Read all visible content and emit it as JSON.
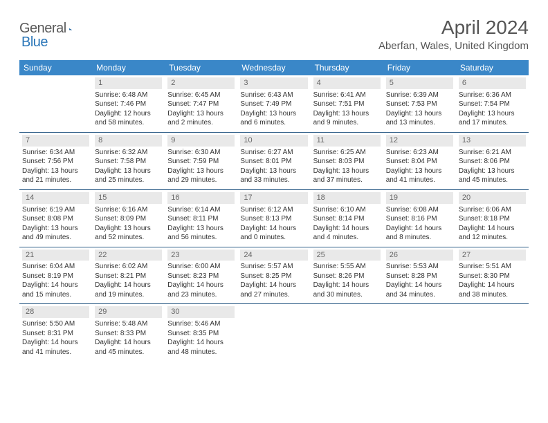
{
  "logo": {
    "left": "General",
    "right": "Blue"
  },
  "title": "April 2024",
  "location": "Aberfan, Wales, United Kingdom",
  "weekday_headers": [
    "Sunday",
    "Monday",
    "Tuesday",
    "Wednesday",
    "Thursday",
    "Friday",
    "Saturday"
  ],
  "header_bg": "#3a87c8",
  "header_fg": "#ffffff",
  "row_border": "#2a5a85",
  "daynum_bg": "#e9e9e9",
  "logo_triangle_fill": "#2a76b8",
  "weeks": [
    [
      {
        "n": "",
        "sunrise": "",
        "sunset": "",
        "dayh": "",
        "daym": ""
      },
      {
        "n": "1",
        "sunrise": "6:48 AM",
        "sunset": "7:46 PM",
        "dayh": "12",
        "daym": "58"
      },
      {
        "n": "2",
        "sunrise": "6:45 AM",
        "sunset": "7:47 PM",
        "dayh": "13",
        "daym": "2"
      },
      {
        "n": "3",
        "sunrise": "6:43 AM",
        "sunset": "7:49 PM",
        "dayh": "13",
        "daym": "6"
      },
      {
        "n": "4",
        "sunrise": "6:41 AM",
        "sunset": "7:51 PM",
        "dayh": "13",
        "daym": "9"
      },
      {
        "n": "5",
        "sunrise": "6:39 AM",
        "sunset": "7:53 PM",
        "dayh": "13",
        "daym": "13"
      },
      {
        "n": "6",
        "sunrise": "6:36 AM",
        "sunset": "7:54 PM",
        "dayh": "13",
        "daym": "17"
      }
    ],
    [
      {
        "n": "7",
        "sunrise": "6:34 AM",
        "sunset": "7:56 PM",
        "dayh": "13",
        "daym": "21"
      },
      {
        "n": "8",
        "sunrise": "6:32 AM",
        "sunset": "7:58 PM",
        "dayh": "13",
        "daym": "25"
      },
      {
        "n": "9",
        "sunrise": "6:30 AM",
        "sunset": "7:59 PM",
        "dayh": "13",
        "daym": "29"
      },
      {
        "n": "10",
        "sunrise": "6:27 AM",
        "sunset": "8:01 PM",
        "dayh": "13",
        "daym": "33"
      },
      {
        "n": "11",
        "sunrise": "6:25 AM",
        "sunset": "8:03 PM",
        "dayh": "13",
        "daym": "37"
      },
      {
        "n": "12",
        "sunrise": "6:23 AM",
        "sunset": "8:04 PM",
        "dayh": "13",
        "daym": "41"
      },
      {
        "n": "13",
        "sunrise": "6:21 AM",
        "sunset": "8:06 PM",
        "dayh": "13",
        "daym": "45"
      }
    ],
    [
      {
        "n": "14",
        "sunrise": "6:19 AM",
        "sunset": "8:08 PM",
        "dayh": "13",
        "daym": "49"
      },
      {
        "n": "15",
        "sunrise": "6:16 AM",
        "sunset": "8:09 PM",
        "dayh": "13",
        "daym": "52"
      },
      {
        "n": "16",
        "sunrise": "6:14 AM",
        "sunset": "8:11 PM",
        "dayh": "13",
        "daym": "56"
      },
      {
        "n": "17",
        "sunrise": "6:12 AM",
        "sunset": "8:13 PM",
        "dayh": "14",
        "daym": "0"
      },
      {
        "n": "18",
        "sunrise": "6:10 AM",
        "sunset": "8:14 PM",
        "dayh": "14",
        "daym": "4"
      },
      {
        "n": "19",
        "sunrise": "6:08 AM",
        "sunset": "8:16 PM",
        "dayh": "14",
        "daym": "8"
      },
      {
        "n": "20",
        "sunrise": "6:06 AM",
        "sunset": "8:18 PM",
        "dayh": "14",
        "daym": "12"
      }
    ],
    [
      {
        "n": "21",
        "sunrise": "6:04 AM",
        "sunset": "8:19 PM",
        "dayh": "14",
        "daym": "15"
      },
      {
        "n": "22",
        "sunrise": "6:02 AM",
        "sunset": "8:21 PM",
        "dayh": "14",
        "daym": "19"
      },
      {
        "n": "23",
        "sunrise": "6:00 AM",
        "sunset": "8:23 PM",
        "dayh": "14",
        "daym": "23"
      },
      {
        "n": "24",
        "sunrise": "5:57 AM",
        "sunset": "8:25 PM",
        "dayh": "14",
        "daym": "27"
      },
      {
        "n": "25",
        "sunrise": "5:55 AM",
        "sunset": "8:26 PM",
        "dayh": "14",
        "daym": "30"
      },
      {
        "n": "26",
        "sunrise": "5:53 AM",
        "sunset": "8:28 PM",
        "dayh": "14",
        "daym": "34"
      },
      {
        "n": "27",
        "sunrise": "5:51 AM",
        "sunset": "8:30 PM",
        "dayh": "14",
        "daym": "38"
      }
    ],
    [
      {
        "n": "28",
        "sunrise": "5:50 AM",
        "sunset": "8:31 PM",
        "dayh": "14",
        "daym": "41"
      },
      {
        "n": "29",
        "sunrise": "5:48 AM",
        "sunset": "8:33 PM",
        "dayh": "14",
        "daym": "45"
      },
      {
        "n": "30",
        "sunrise": "5:46 AM",
        "sunset": "8:35 PM",
        "dayh": "14",
        "daym": "48"
      },
      {
        "n": "",
        "sunrise": "",
        "sunset": "",
        "dayh": "",
        "daym": ""
      },
      {
        "n": "",
        "sunrise": "",
        "sunset": "",
        "dayh": "",
        "daym": ""
      },
      {
        "n": "",
        "sunrise": "",
        "sunset": "",
        "dayh": "",
        "daym": ""
      },
      {
        "n": "",
        "sunrise": "",
        "sunset": "",
        "dayh": "",
        "daym": ""
      }
    ]
  ],
  "labels": {
    "sunrise": "Sunrise:",
    "sunset": "Sunset:",
    "daylight": "Daylight:",
    "hours": "hours",
    "and": "and",
    "minutes": "minutes."
  }
}
